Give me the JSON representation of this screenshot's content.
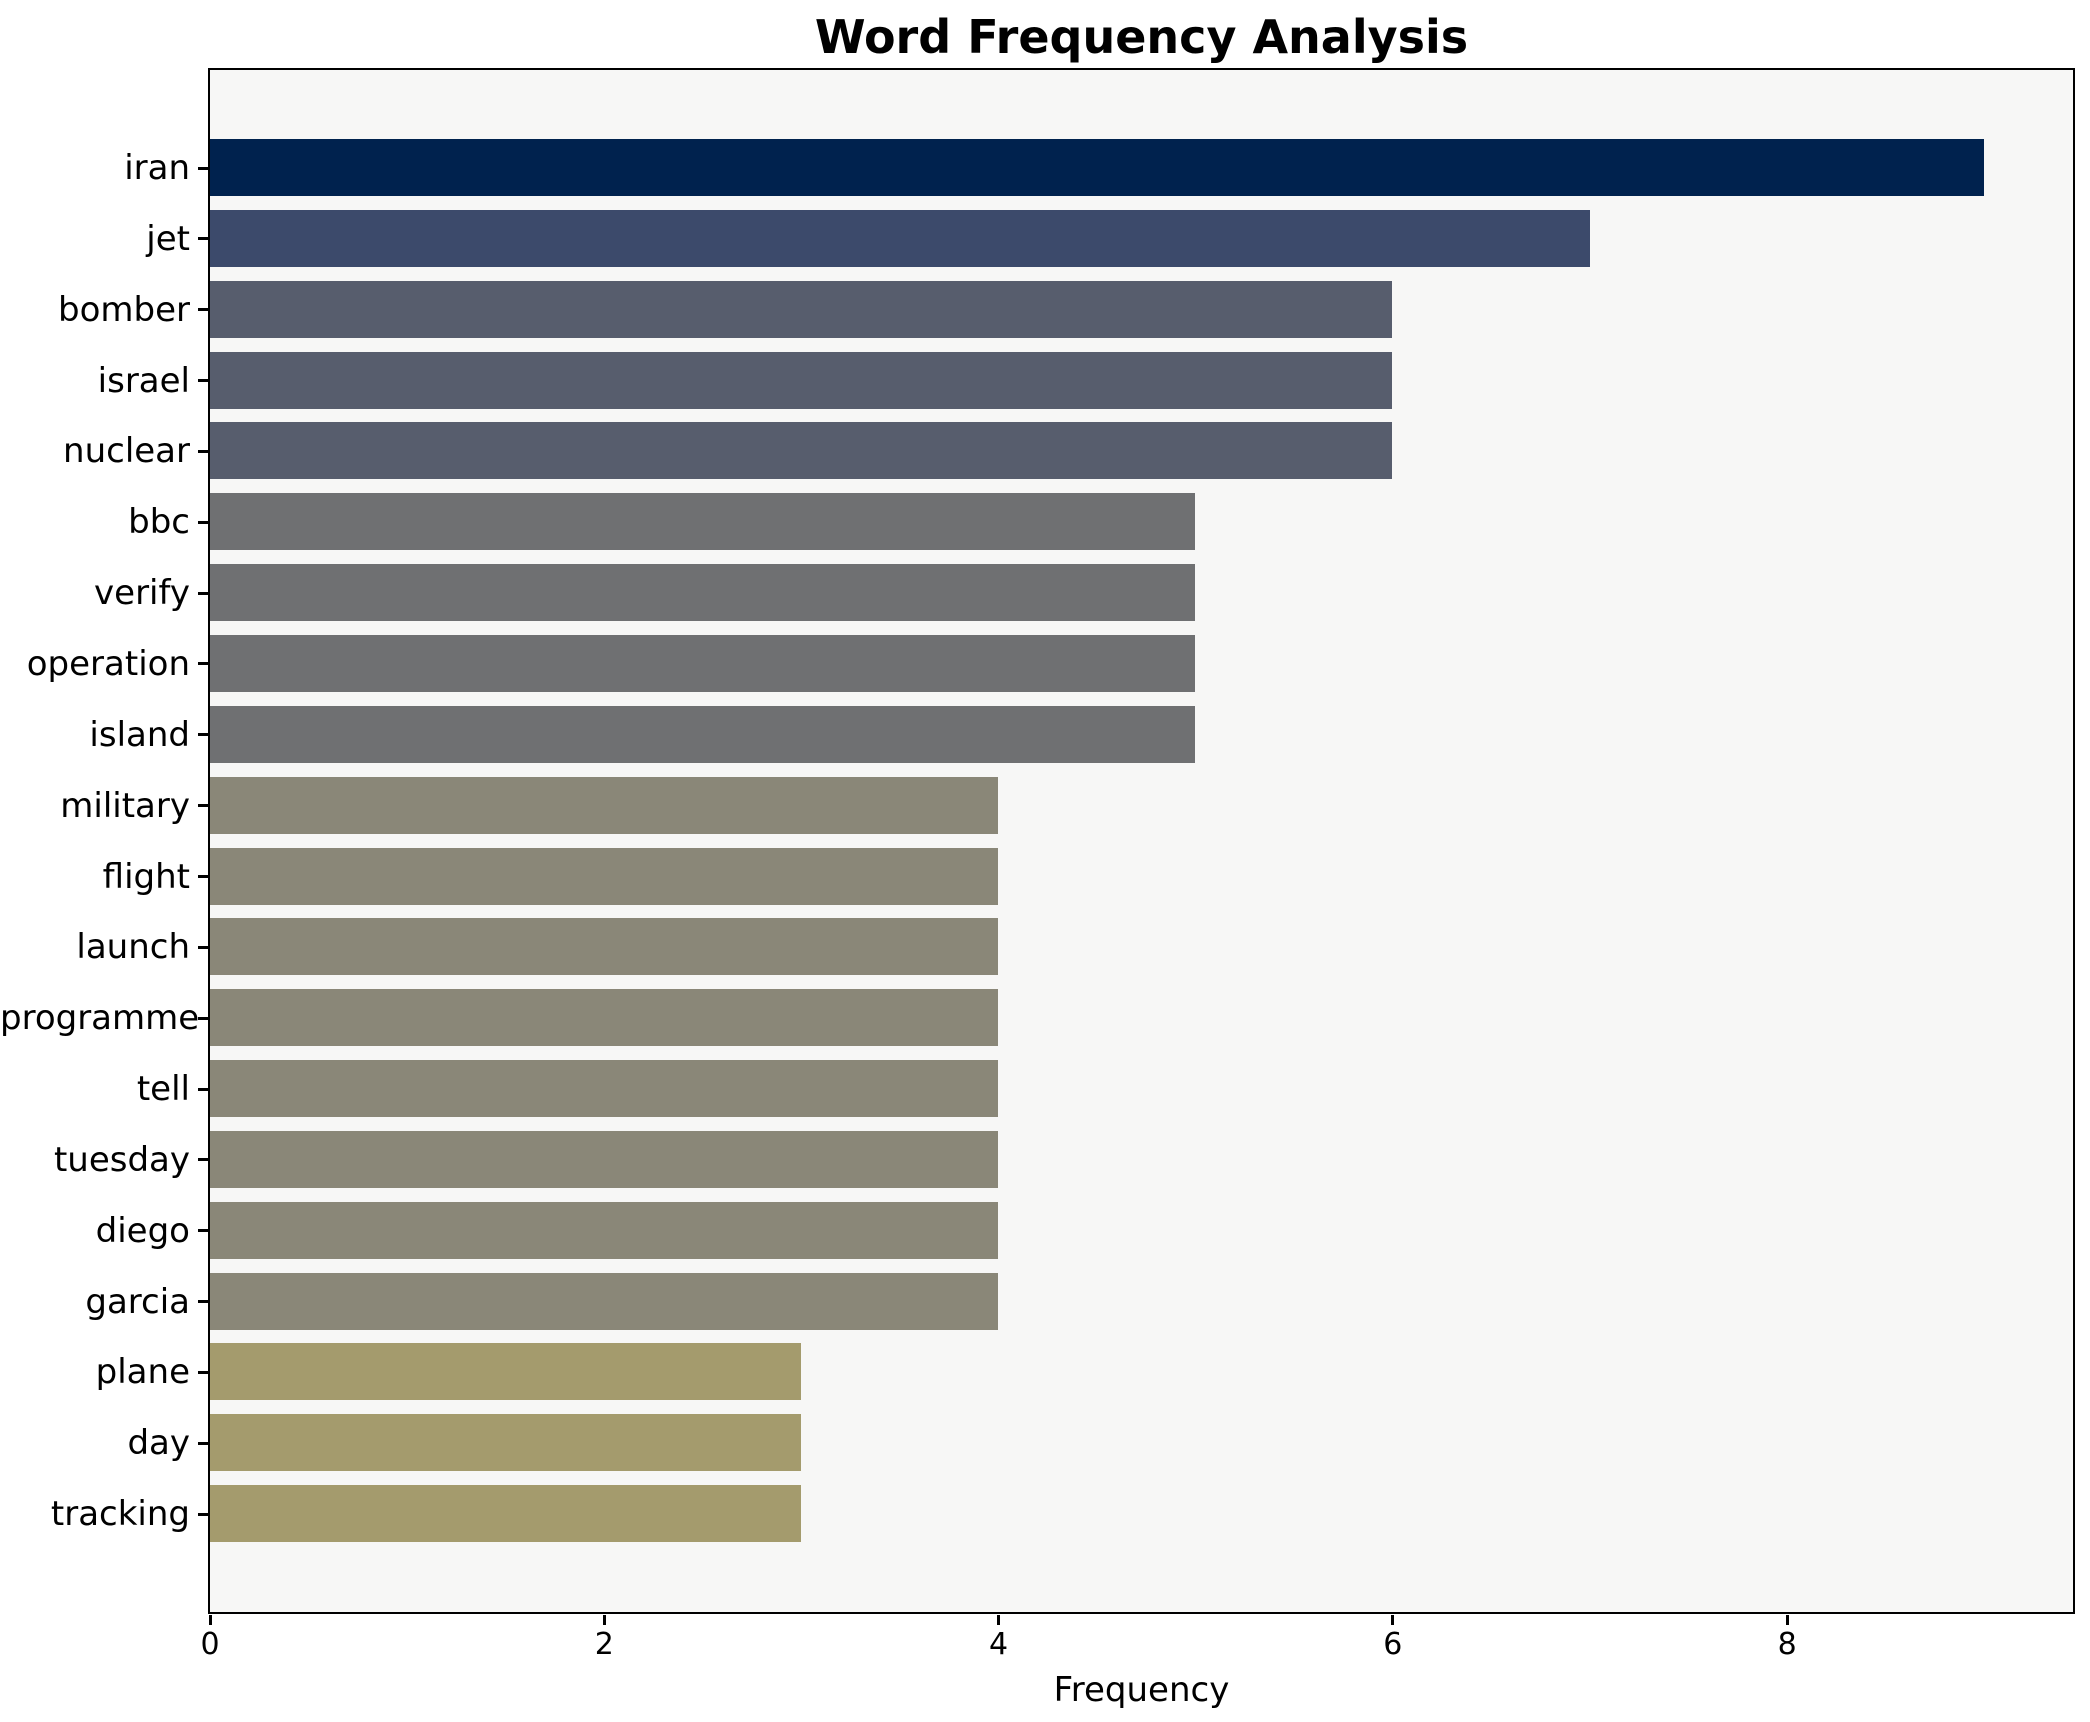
{
  "chart_data": {
    "type": "bar",
    "orientation": "horizontal",
    "title": "Word Frequency Analysis",
    "xlabel": "Frequency",
    "ylabel": "",
    "categories": [
      "iran",
      "jet",
      "bomber",
      "israel",
      "nuclear",
      "bbc",
      "verify",
      "operation",
      "island",
      "military",
      "flight",
      "launch",
      "programme",
      "tell",
      "tuesday",
      "diego",
      "garcia",
      "plane",
      "day",
      "tracking"
    ],
    "values": [
      9,
      7,
      6,
      6,
      6,
      5,
      5,
      5,
      5,
      4,
      4,
      4,
      4,
      4,
      4,
      4,
      4,
      3,
      3,
      3
    ],
    "bar_colors": [
      "#00224e",
      "#3c4a6b",
      "#575d6d",
      "#575d6d",
      "#575d6d",
      "#6f7072",
      "#6f7072",
      "#6f7072",
      "#6f7072",
      "#8a8778",
      "#8a8778",
      "#8a8778",
      "#8a8778",
      "#8a8778",
      "#8a8778",
      "#8a8778",
      "#8a8778",
      "#a49b6d",
      "#a49b6d",
      "#a49b6d"
    ],
    "xlim": [
      0,
      9.45
    ],
    "xticks": [
      "0",
      "2",
      "4",
      "6",
      "8"
    ],
    "xtick_values": [
      0,
      2,
      4,
      6,
      8
    ],
    "grid": false,
    "legend": "none",
    "plot_background": "#f7f7f6",
    "figure_background": "#ffffff",
    "title_color": "#000000",
    "axis_color": "#000000"
  }
}
